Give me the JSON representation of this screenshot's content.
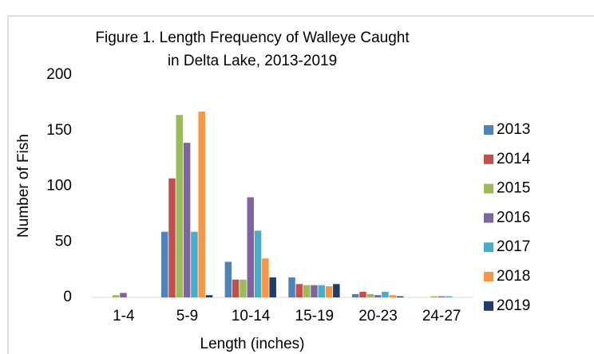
{
  "chart_data": {
    "type": "bar",
    "title": [
      "Figure 1.  Length Frequency of Walleye Caught",
      "in Delta Lake,  2013-2019"
    ],
    "x_label": "Length (inches)",
    "y_label": "Number of Fish",
    "categories": [
      "1-4",
      "5-9",
      "10-14",
      "15-19",
      "20-23",
      "24-27"
    ],
    "series": [
      {
        "name": "2013",
        "color": "#4f81bd",
        "values": [
          0,
          59,
          32,
          18,
          3,
          0
        ]
      },
      {
        "name": "2014",
        "color": "#c0504d",
        "values": [
          0,
          107,
          16,
          12,
          5,
          0
        ]
      },
      {
        "name": "2015",
        "color": "#9bbb59",
        "values": [
          2,
          164,
          16,
          11,
          3,
          1
        ]
      },
      {
        "name": "2016",
        "color": "#8064a2",
        "values": [
          4,
          139,
          90,
          11,
          2,
          1
        ]
      },
      {
        "name": "2017",
        "color": "#4bacc6",
        "values": [
          0,
          59,
          60,
          11,
          5,
          1
        ]
      },
      {
        "name": "2018",
        "color": "#f79646",
        "values": [
          0,
          167,
          35,
          10,
          2,
          0
        ]
      },
      {
        "name": "2019",
        "color": "#1f3d66",
        "values": [
          0,
          2,
          18,
          12,
          1,
          0
        ]
      }
    ],
    "ylim": [
      0,
      200
    ],
    "yticks": [
      0,
      50,
      100,
      150,
      200
    ],
    "grid": false,
    "legend": "right"
  }
}
